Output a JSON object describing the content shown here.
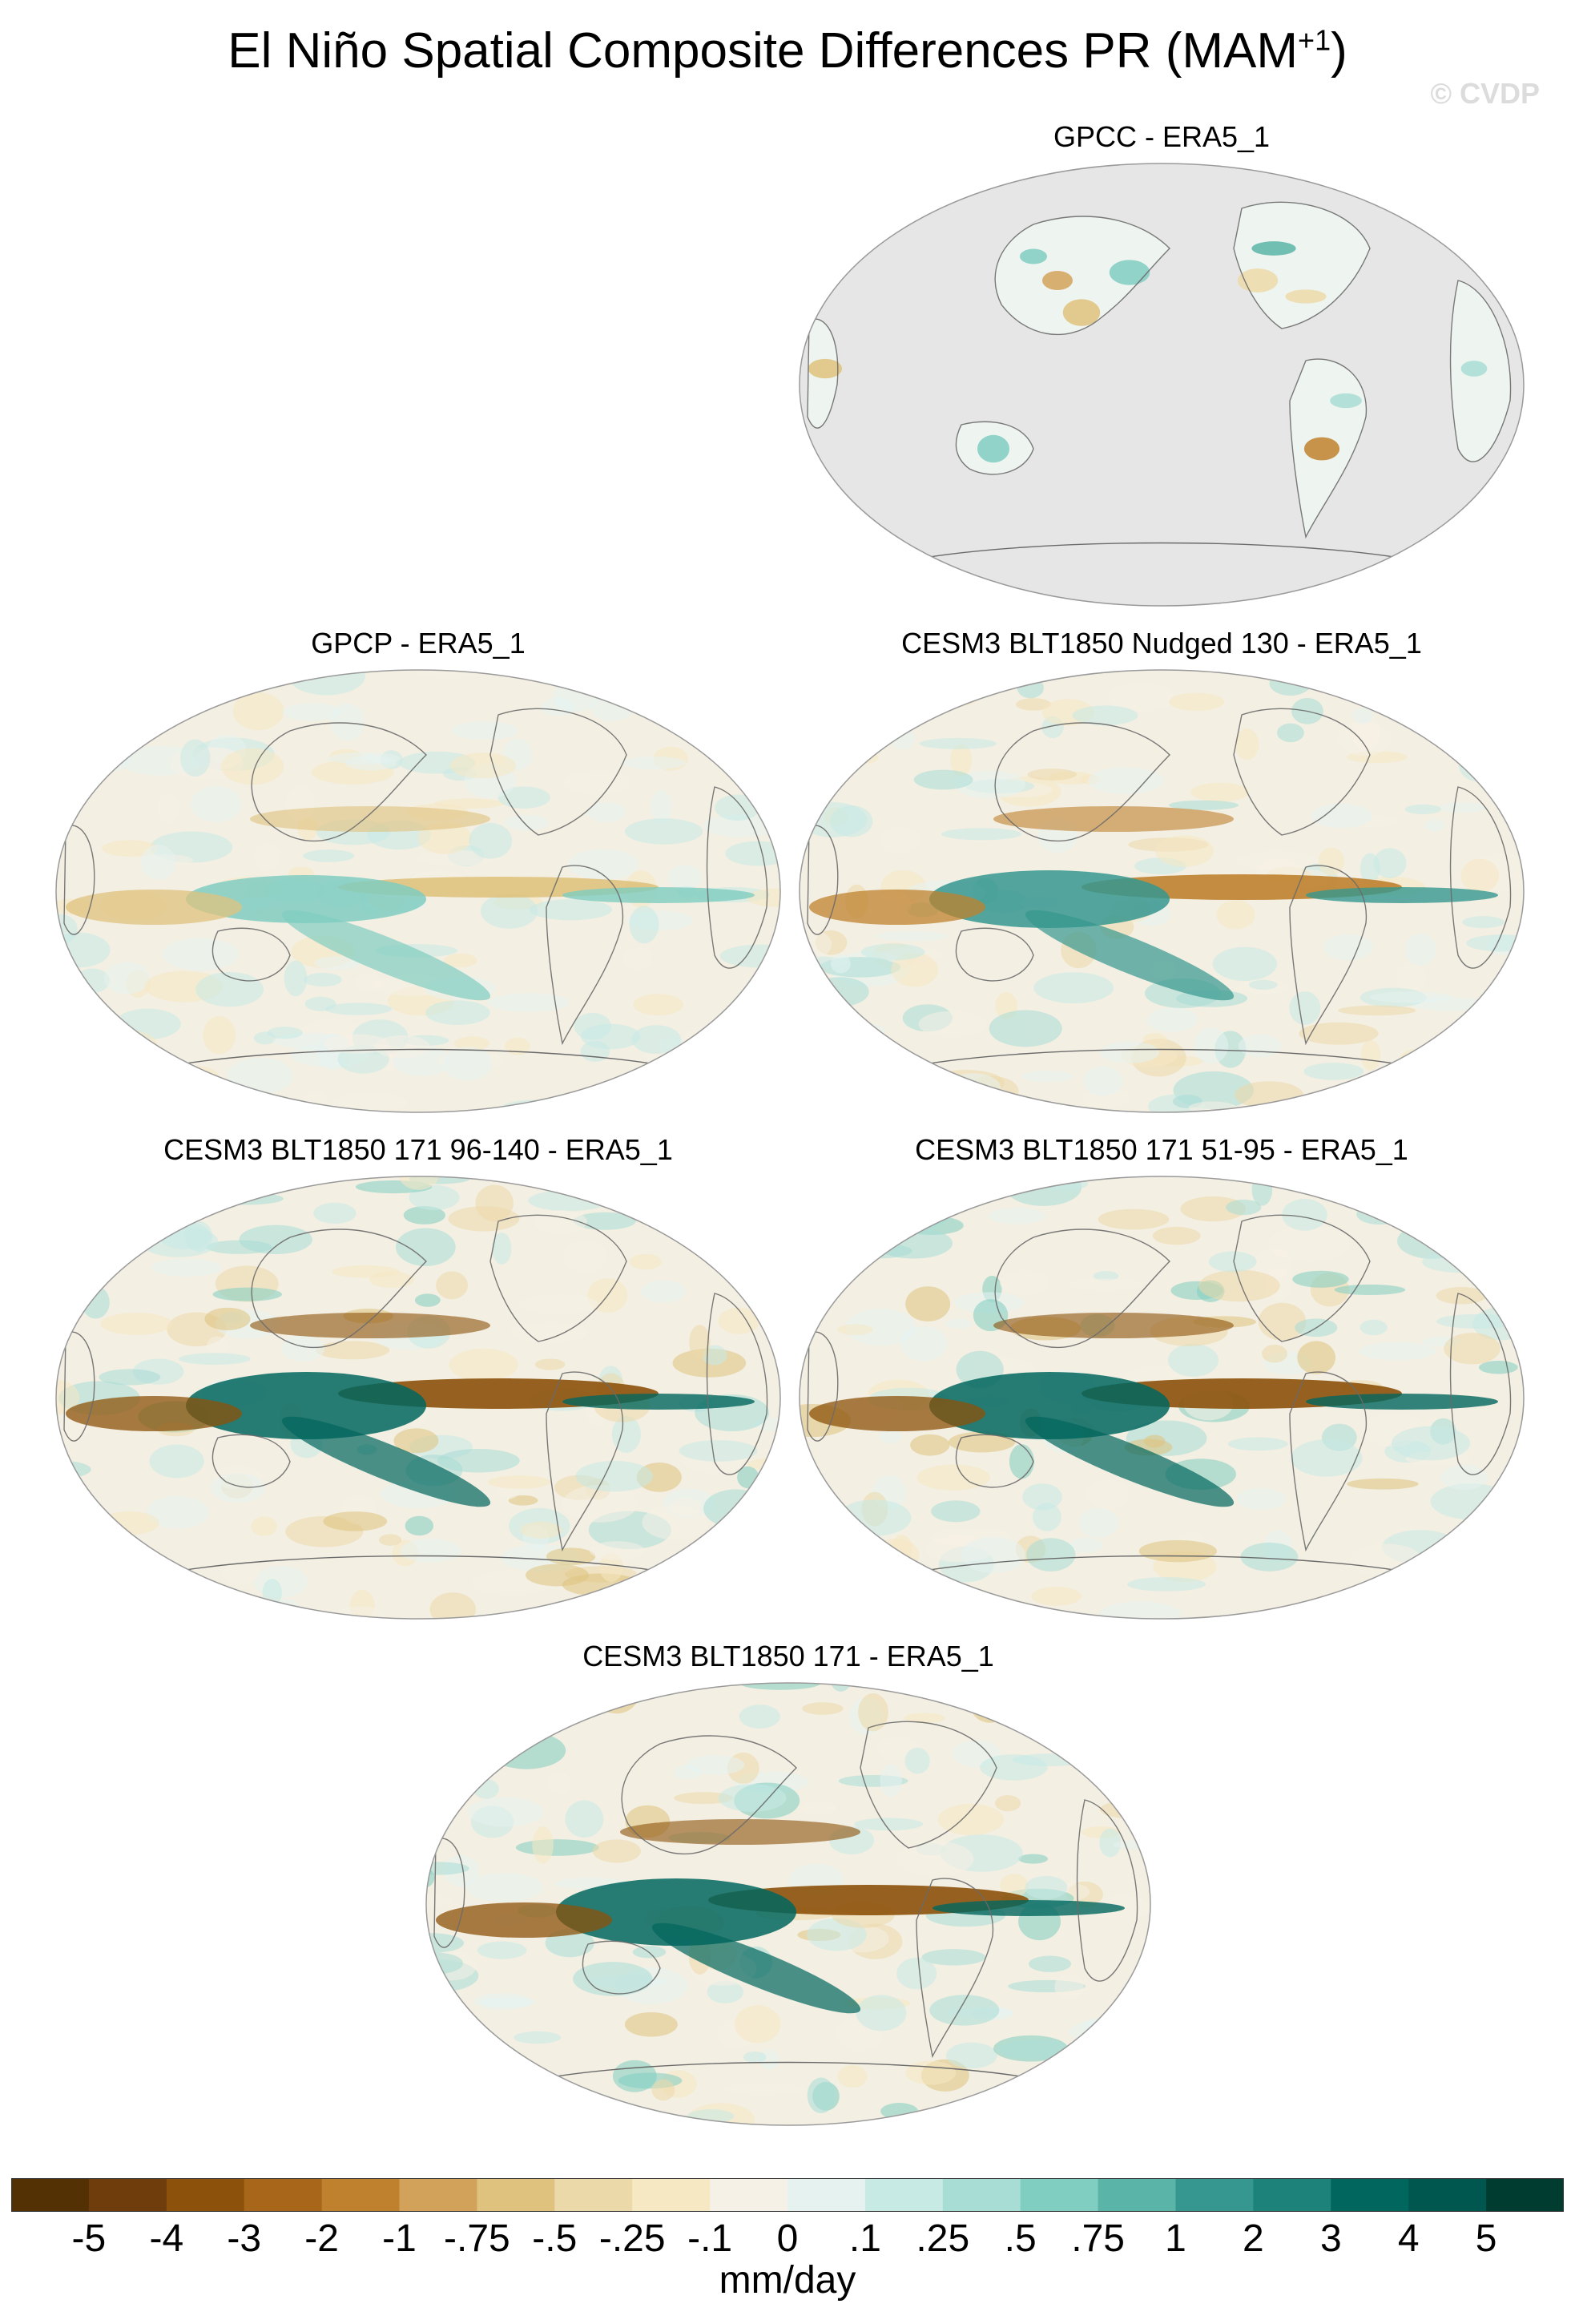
{
  "title": "El Niño Spatial Composite Differences PR (MAM",
  "title_sup": "+1",
  "title_close": ")",
  "watermark": "© CVDP",
  "panels": [
    {
      "label": "GPCC - ERA5_1",
      "style": "land"
    },
    {
      "label": "GPCP - ERA5_1",
      "style": "weak"
    },
    {
      "label": "CESM3 BLT1850 Nudged 130 - ERA5_1",
      "style": "medium"
    },
    {
      "label": "CESM3 BLT1850 171 96-140 - ERA5_1",
      "style": "strong"
    },
    {
      "label": "CESM3 BLT1850 171 51-95 - ERA5_1",
      "style": "strong"
    },
    {
      "label": "CESM3 BLT1850 171 - ERA5_1",
      "style": "strong"
    }
  ],
  "colorbar": {
    "ticks": [
      "-5",
      "-4",
      "-3",
      "-2",
      "-1",
      "-.75",
      "-.5",
      "-.25",
      "-.1",
      "0",
      ".1",
      ".25",
      ".5",
      ".75",
      "1",
      "2",
      "3",
      "4",
      "5"
    ],
    "colors": [
      "#543005",
      "#6f3c0b",
      "#8c510a",
      "#a7661a",
      "#bf812d",
      "#d2a25a",
      "#dfc27d",
      "#ecd9a9",
      "#f6e8c3",
      "#f5f1e6",
      "#e6f2f0",
      "#c7eae5",
      "#a8ddd5",
      "#80cdc1",
      "#5ab4a8",
      "#35978f",
      "#1d8279",
      "#01665e",
      "#00574f",
      "#003c30"
    ],
    "units": "mm/day"
  }
}
